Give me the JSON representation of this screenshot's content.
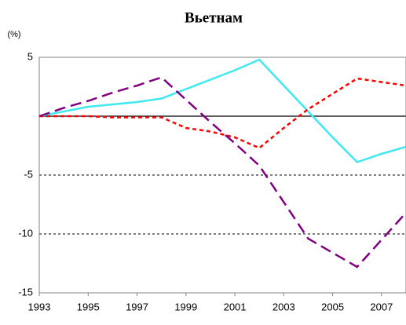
{
  "chart_data": {
    "type": "line",
    "title": "Вьетнам",
    "y_label": "(%)",
    "x": [
      1993,
      1994,
      1995,
      1996,
      1997,
      1998,
      1999,
      2000,
      2001,
      2002,
      2003,
      2004,
      2005,
      2006,
      2007,
      2008
    ],
    "xlim": [
      1993,
      2008
    ],
    "xticks": [
      1993,
      1995,
      1997,
      1999,
      2001,
      2003,
      2005,
      2007
    ],
    "ylim": [
      -15,
      5
    ],
    "yticks": [
      -15,
      -10,
      -5,
      5
    ],
    "grid": true,
    "series": [
      {
        "color": "#40e8f0",
        "style": "solid",
        "values": [
          0,
          0.4,
          0.8,
          1.0,
          1.2,
          1.5,
          2.3,
          3.1,
          3.9,
          4.8,
          2.6,
          0.4,
          -1.8,
          -3.9,
          -3.2,
          -2.6
        ]
      },
      {
        "color": "#ff0000",
        "style": "short-dash",
        "values": [
          0,
          0,
          0,
          -0.1,
          -0.1,
          -0.1,
          -1.0,
          -1.3,
          -1.8,
          -2.7,
          -1.0,
          0.6,
          1.9,
          3.2,
          2.9,
          2.6
        ]
      },
      {
        "color": "#800080",
        "style": "long-dash",
        "values": [
          0,
          0.7,
          1.3,
          2.0,
          2.6,
          3.3,
          1.4,
          -0.5,
          -2.3,
          -4.2,
          -7.3,
          -10.4,
          -11.6,
          -12.8,
          -10.5,
          -8.2
        ]
      }
    ]
  }
}
